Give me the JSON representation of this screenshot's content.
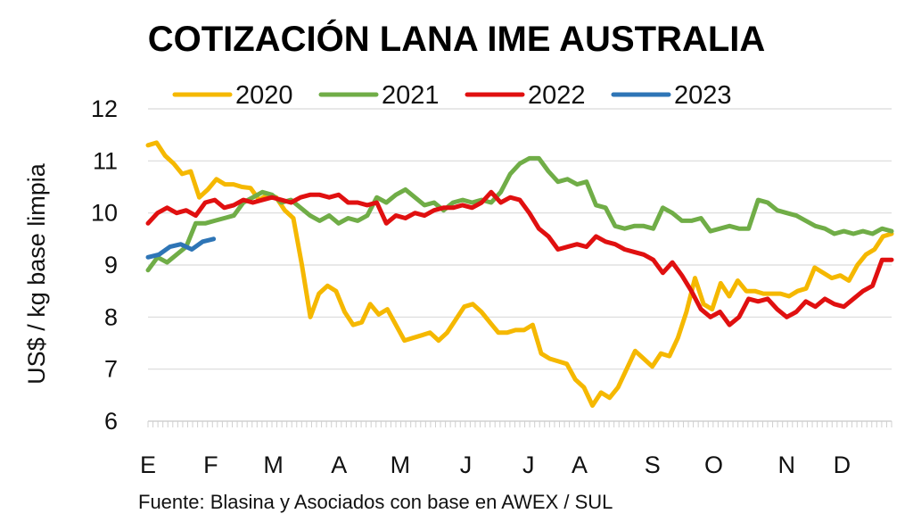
{
  "chart_data": {
    "type": "line",
    "title": "COTIZACIÓN LANA IME AUSTRALIA",
    "ylabel": "US$ / kg base limpia",
    "xlabel": "",
    "ylim": [
      6,
      12
    ],
    "yticks": [
      6,
      7,
      8,
      9,
      10,
      11,
      12
    ],
    "weeks_per_year": 52,
    "xticks": [
      {
        "label": "E",
        "week": 0
      },
      {
        "label": "F",
        "week": 4.3
      },
      {
        "label": "M",
        "week": 8.6
      },
      {
        "label": "A",
        "week": 13.1
      },
      {
        "label": "M",
        "week": 17.3
      },
      {
        "label": "J",
        "week": 21.8
      },
      {
        "label": "J",
        "week": 26.1
      },
      {
        "label": "A",
        "week": 29.6
      },
      {
        "label": "S",
        "week": 34.6
      },
      {
        "label": "O",
        "week": 38.8
      },
      {
        "label": "N",
        "week": 43.8
      },
      {
        "label": "D",
        "week": 47.6
      }
    ],
    "legend_position": "top",
    "source": "Fuente: Blasina y Asociados con base en AWEX / SUL",
    "series": [
      {
        "name": "2020",
        "color": "#f5b800",
        "start_week": 0,
        "values": [
          11.3,
          11.35,
          11.1,
          10.95,
          10.75,
          10.8,
          10.3,
          10.45,
          10.65,
          10.55,
          10.55,
          10.5,
          10.48,
          10.25,
          10.35,
          10.3,
          10.05,
          9.9,
          9.0,
          8.0,
          8.45,
          8.6,
          8.5,
          8.1,
          7.85,
          7.9,
          8.25,
          8.05,
          8.15,
          7.85,
          7.55,
          7.6,
          7.65,
          7.7,
          7.55,
          7.7,
          7.95,
          8.2,
          8.25,
          8.1,
          7.9,
          7.7,
          7.7,
          7.75,
          7.75,
          7.85,
          7.3,
          7.2,
          7.15,
          7.1,
          6.8,
          6.65,
          6.3,
          6.55,
          6.45,
          6.65,
          7.0,
          7.35,
          7.2,
          7.05,
          7.3,
          7.25,
          7.6,
          8.1,
          8.75,
          8.25,
          8.15,
          8.65,
          8.4,
          8.7,
          8.5,
          8.5,
          8.45,
          8.45,
          8.45,
          8.4,
          8.5,
          8.55,
          8.95,
          8.85,
          8.75,
          8.8,
          8.7,
          9.0,
          9.2,
          9.3,
          9.55,
          9.6
        ]
      },
      {
        "name": "2021",
        "color": "#70ad47",
        "start_week": 0,
        "values": [
          8.9,
          9.15,
          9.05,
          9.2,
          9.35,
          9.8,
          9.8,
          9.85,
          9.9,
          9.95,
          10.2,
          10.3,
          10.4,
          10.35,
          10.2,
          10.25,
          10.1,
          9.95,
          9.85,
          9.95,
          9.8,
          9.9,
          9.85,
          9.95,
          10.3,
          10.2,
          10.35,
          10.45,
          10.3,
          10.15,
          10.2,
          10.05,
          10.2,
          10.25,
          10.2,
          10.25,
          10.2,
          10.4,
          10.75,
          10.95,
          11.05,
          11.05,
          10.8,
          10.6,
          10.65,
          10.55,
          10.6,
          10.15,
          10.1,
          9.75,
          9.7,
          9.75,
          9.75,
          9.7,
          10.1,
          10.0,
          9.85,
          9.85,
          9.9,
          9.65,
          9.7,
          9.75,
          9.7,
          9.7,
          10.25,
          10.2,
          10.05,
          10.0,
          9.95,
          9.85,
          9.75,
          9.7,
          9.6,
          9.65,
          9.6,
          9.65,
          9.6,
          9.7,
          9.65
        ]
      },
      {
        "name": "2022",
        "color": "#e01010",
        "start_week": 0,
        "values": [
          9.8,
          10.0,
          10.1,
          10.0,
          10.05,
          9.95,
          10.2,
          10.25,
          10.1,
          10.15,
          10.25,
          10.2,
          10.25,
          10.3,
          10.25,
          10.2,
          10.3,
          10.35,
          10.35,
          10.3,
          10.35,
          10.2,
          10.2,
          10.15,
          10.2,
          9.8,
          9.95,
          9.9,
          10.0,
          9.95,
          10.05,
          10.1,
          10.1,
          10.15,
          10.1,
          10.2,
          10.4,
          10.2,
          10.3,
          10.25,
          10.0,
          9.7,
          9.55,
          9.3,
          9.35,
          9.4,
          9.35,
          9.55,
          9.45,
          9.4,
          9.3,
          9.25,
          9.2,
          9.1,
          8.85,
          9.05,
          8.8,
          8.5,
          8.15,
          8.0,
          8.1,
          7.85,
          8.0,
          8.35,
          8.3,
          8.35,
          8.15,
          8.0,
          8.1,
          8.3,
          8.2,
          8.35,
          8.25,
          8.2,
          8.35,
          8.5,
          8.6,
          9.1,
          9.1
        ]
      },
      {
        "name": "2023",
        "color": "#2e75b6",
        "start_week": 0,
        "values": [
          9.15,
          9.2,
          9.35,
          9.4,
          9.3,
          9.45,
          9.5
        ]
      }
    ]
  }
}
